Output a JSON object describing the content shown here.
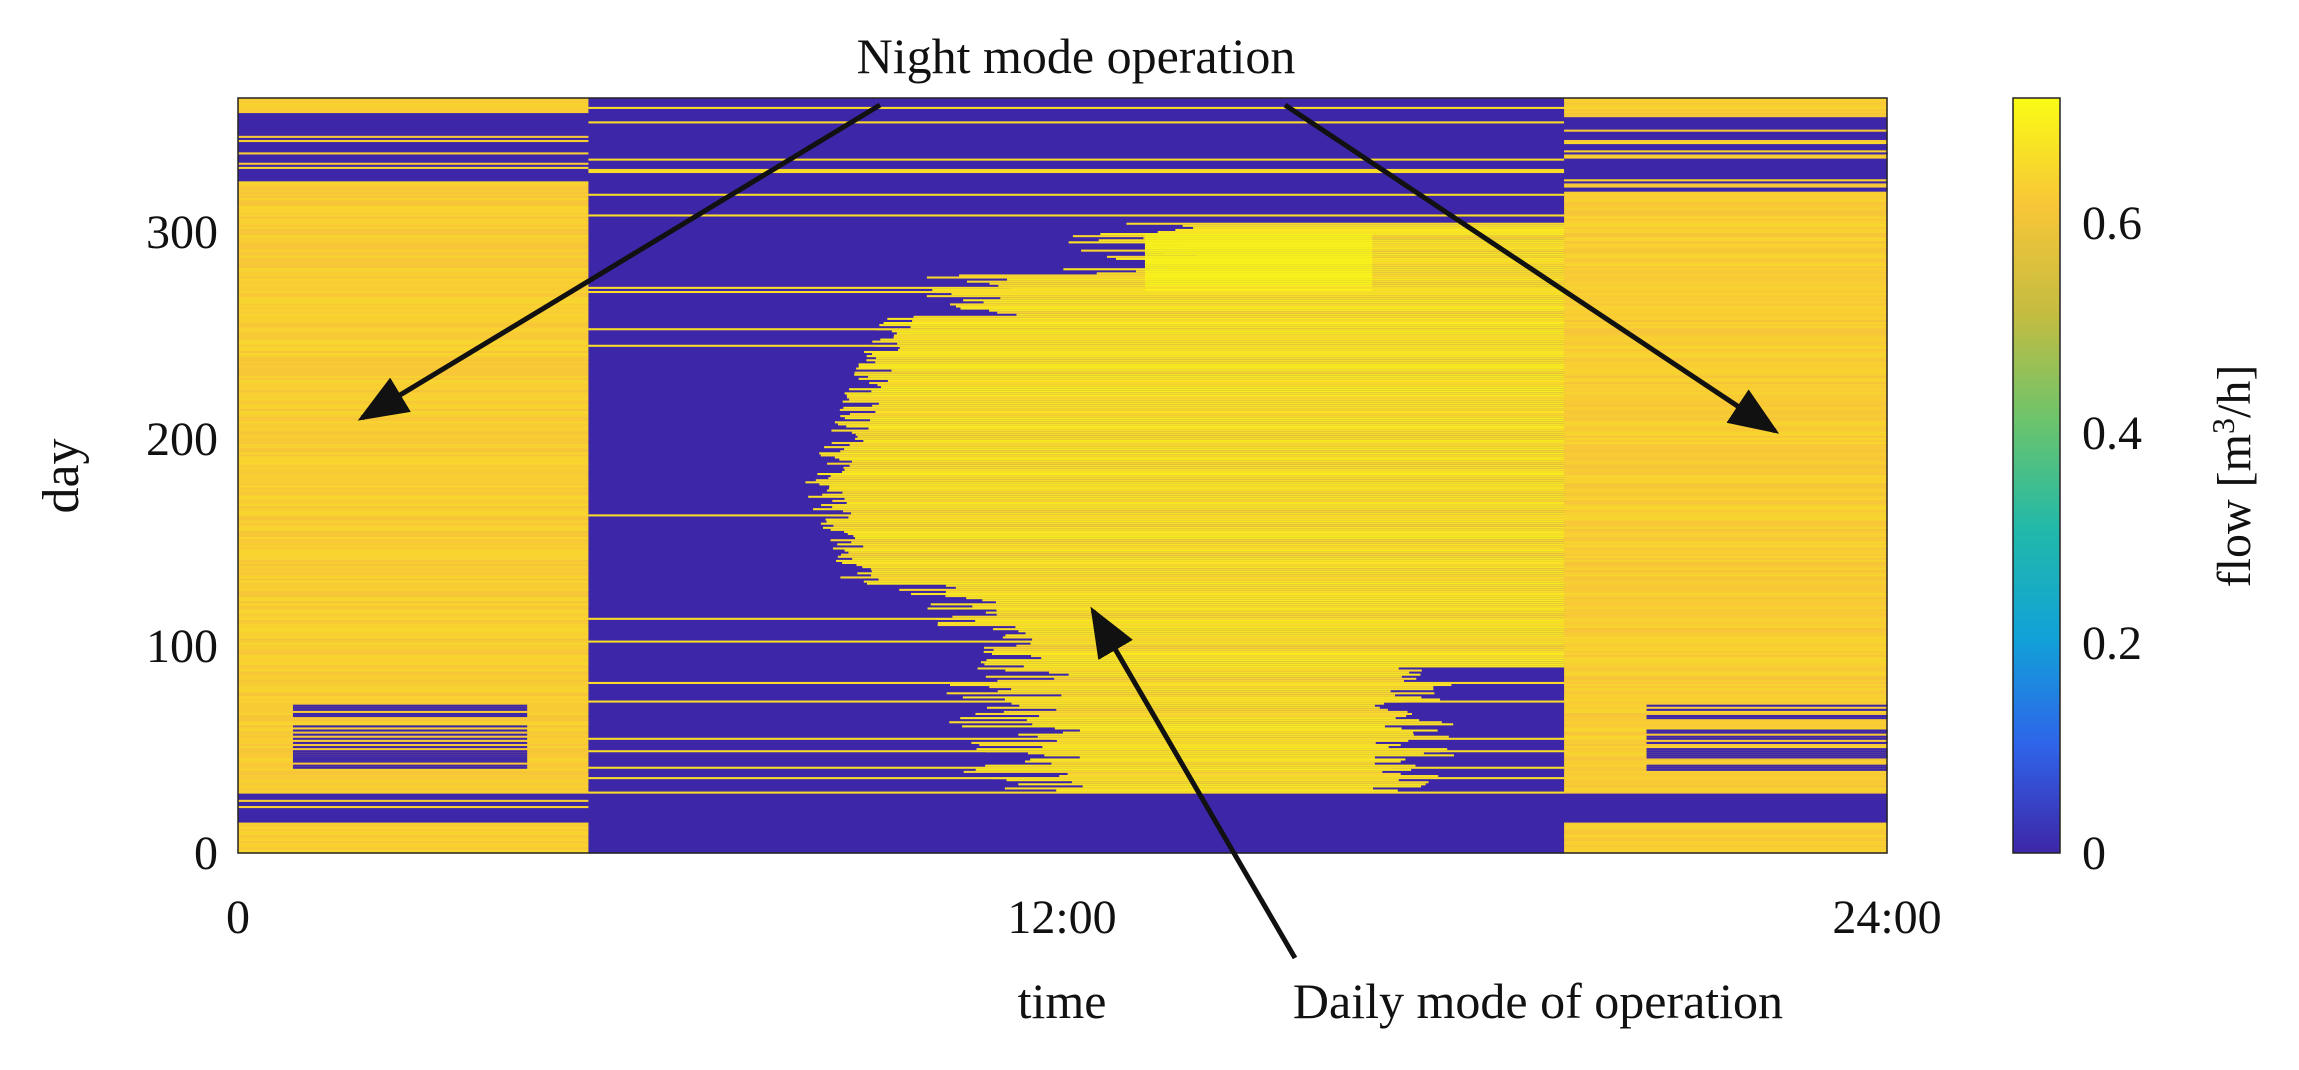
{
  "chart_data": {
    "type": "heatmap",
    "xlabel": "time",
    "ylabel": "day",
    "x_ticks": [
      "0",
      "12:00",
      "24:00"
    ],
    "x_tick_hours": [
      0,
      12,
      24
    ],
    "y_ticks": [
      "0",
      "100",
      "200",
      "300"
    ],
    "y_tick_values": [
      0,
      100,
      200,
      300
    ],
    "xlim_hours": [
      0,
      24
    ],
    "ylim_days": [
      0,
      365
    ],
    "colorbar": {
      "label_prefix": "flow [m",
      "label_sup": "3",
      "label_suffix": "/h]",
      "ticks": [
        "0",
        "0.2",
        "0.4",
        "0.6"
      ],
      "tick_values": [
        0,
        0.2,
        0.4,
        0.6
      ],
      "range": [
        0,
        0.72
      ],
      "colormap": "parula",
      "colors": [
        "#3e26a8",
        "#2f64ea",
        "#11a2d8",
        "#21b9a9",
        "#6bc46c",
        "#c4bc40",
        "#f8c638",
        "#f9fb15"
      ]
    },
    "night_flow_typical": 0.63,
    "day_flow_typical": 0.66,
    "off_flow": 0.0,
    "regions": [
      {
        "name": "night-early",
        "hours": [
          0,
          5.1
        ],
        "days": [
          0,
          365
        ]
      },
      {
        "name": "daytime",
        "hours": [
          5.1,
          19.3
        ],
        "days": [
          0,
          365
        ]
      },
      {
        "name": "night-late",
        "hours": [
          19.3,
          24
        ],
        "days": [
          0,
          365
        ]
      }
    ],
    "annotations": [
      {
        "text": "Night mode operation",
        "arrows_to": [
          {
            "hour": 1.8,
            "day": 205
          },
          {
            "hour": 22.5,
            "day": 200
          }
        ]
      },
      {
        "text": "Daily mode of operation",
        "arrow_to": {
          "hour": 12.4,
          "day": 117
        }
      }
    ]
  }
}
